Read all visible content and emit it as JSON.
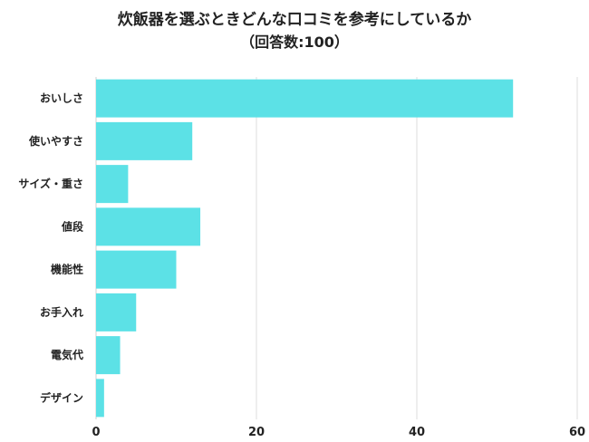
{
  "chart_data": {
    "type": "bar",
    "orientation": "horizontal",
    "title": "炊飯器を選ぶときどんな口コミを参考にしているか",
    "subtitle": "（回答数:100）",
    "categories": [
      "おいしさ",
      "使いやすさ",
      "サイズ・重さ",
      "値段",
      "機能性",
      "お手入れ",
      "電気代",
      "デザイン"
    ],
    "values": [
      52,
      12,
      4,
      13,
      10,
      5,
      3,
      1
    ],
    "xlim": [
      0,
      60
    ],
    "xticks": [
      0,
      20,
      40,
      60
    ],
    "grid": true,
    "bar_color": "#5ce1e6",
    "grid_color": "#dcdcdc"
  }
}
